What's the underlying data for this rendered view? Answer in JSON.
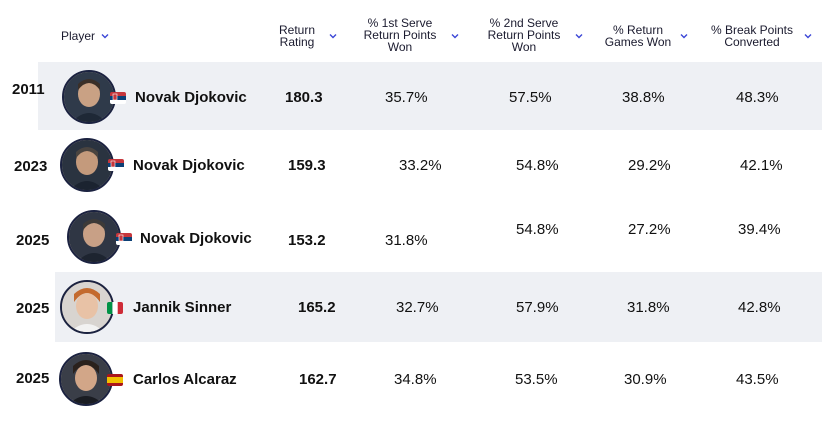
{
  "header": {
    "player": "Player",
    "return_rating": [
      "Return",
      "Rating"
    ],
    "first_serve": [
      "% 1st Serve",
      "Return Points",
      "Won"
    ],
    "second_serve": [
      "% 2nd Serve",
      "Return Points",
      "Won"
    ],
    "return_games": [
      "% Return",
      "Games Won"
    ],
    "break_points": [
      "% Break Points",
      "Converted"
    ]
  },
  "rows": [
    {
      "year": "2011",
      "name": "Novak Djokovic",
      "flag": "serbia",
      "rating": "180.3",
      "first": "35.7%",
      "second": "57.5%",
      "games": "38.8%",
      "bp": "48.3%"
    },
    {
      "year": "2023",
      "name": "Novak Djokovic",
      "flag": "serbia",
      "rating": "159.3",
      "first": "33.2%",
      "second": "54.8%",
      "games": "29.2%",
      "bp": "42.1%"
    },
    {
      "year": "2025",
      "name": "Novak Djokovic",
      "flag": "serbia",
      "rating": "153.2",
      "first": "31.8%",
      "second": "54.8%",
      "games": "27.2%",
      "bp": "39.4%"
    },
    {
      "year": "2025",
      "name": "Jannik Sinner",
      "flag": "italy",
      "rating": "165.2",
      "first": "32.7%",
      "second": "57.9%",
      "games": "31.8%",
      "bp": "42.8%"
    },
    {
      "year": "2025",
      "name": "Carlos Alcaraz",
      "flag": "spain",
      "rating": "162.7",
      "first": "34.8%",
      "second": "53.5%",
      "games": "30.9%",
      "bp": "43.5%"
    }
  ],
  "colors": {
    "accent": "#3b46d6",
    "row_band": "#eef0f4",
    "avatar_border": "#1b2240"
  }
}
